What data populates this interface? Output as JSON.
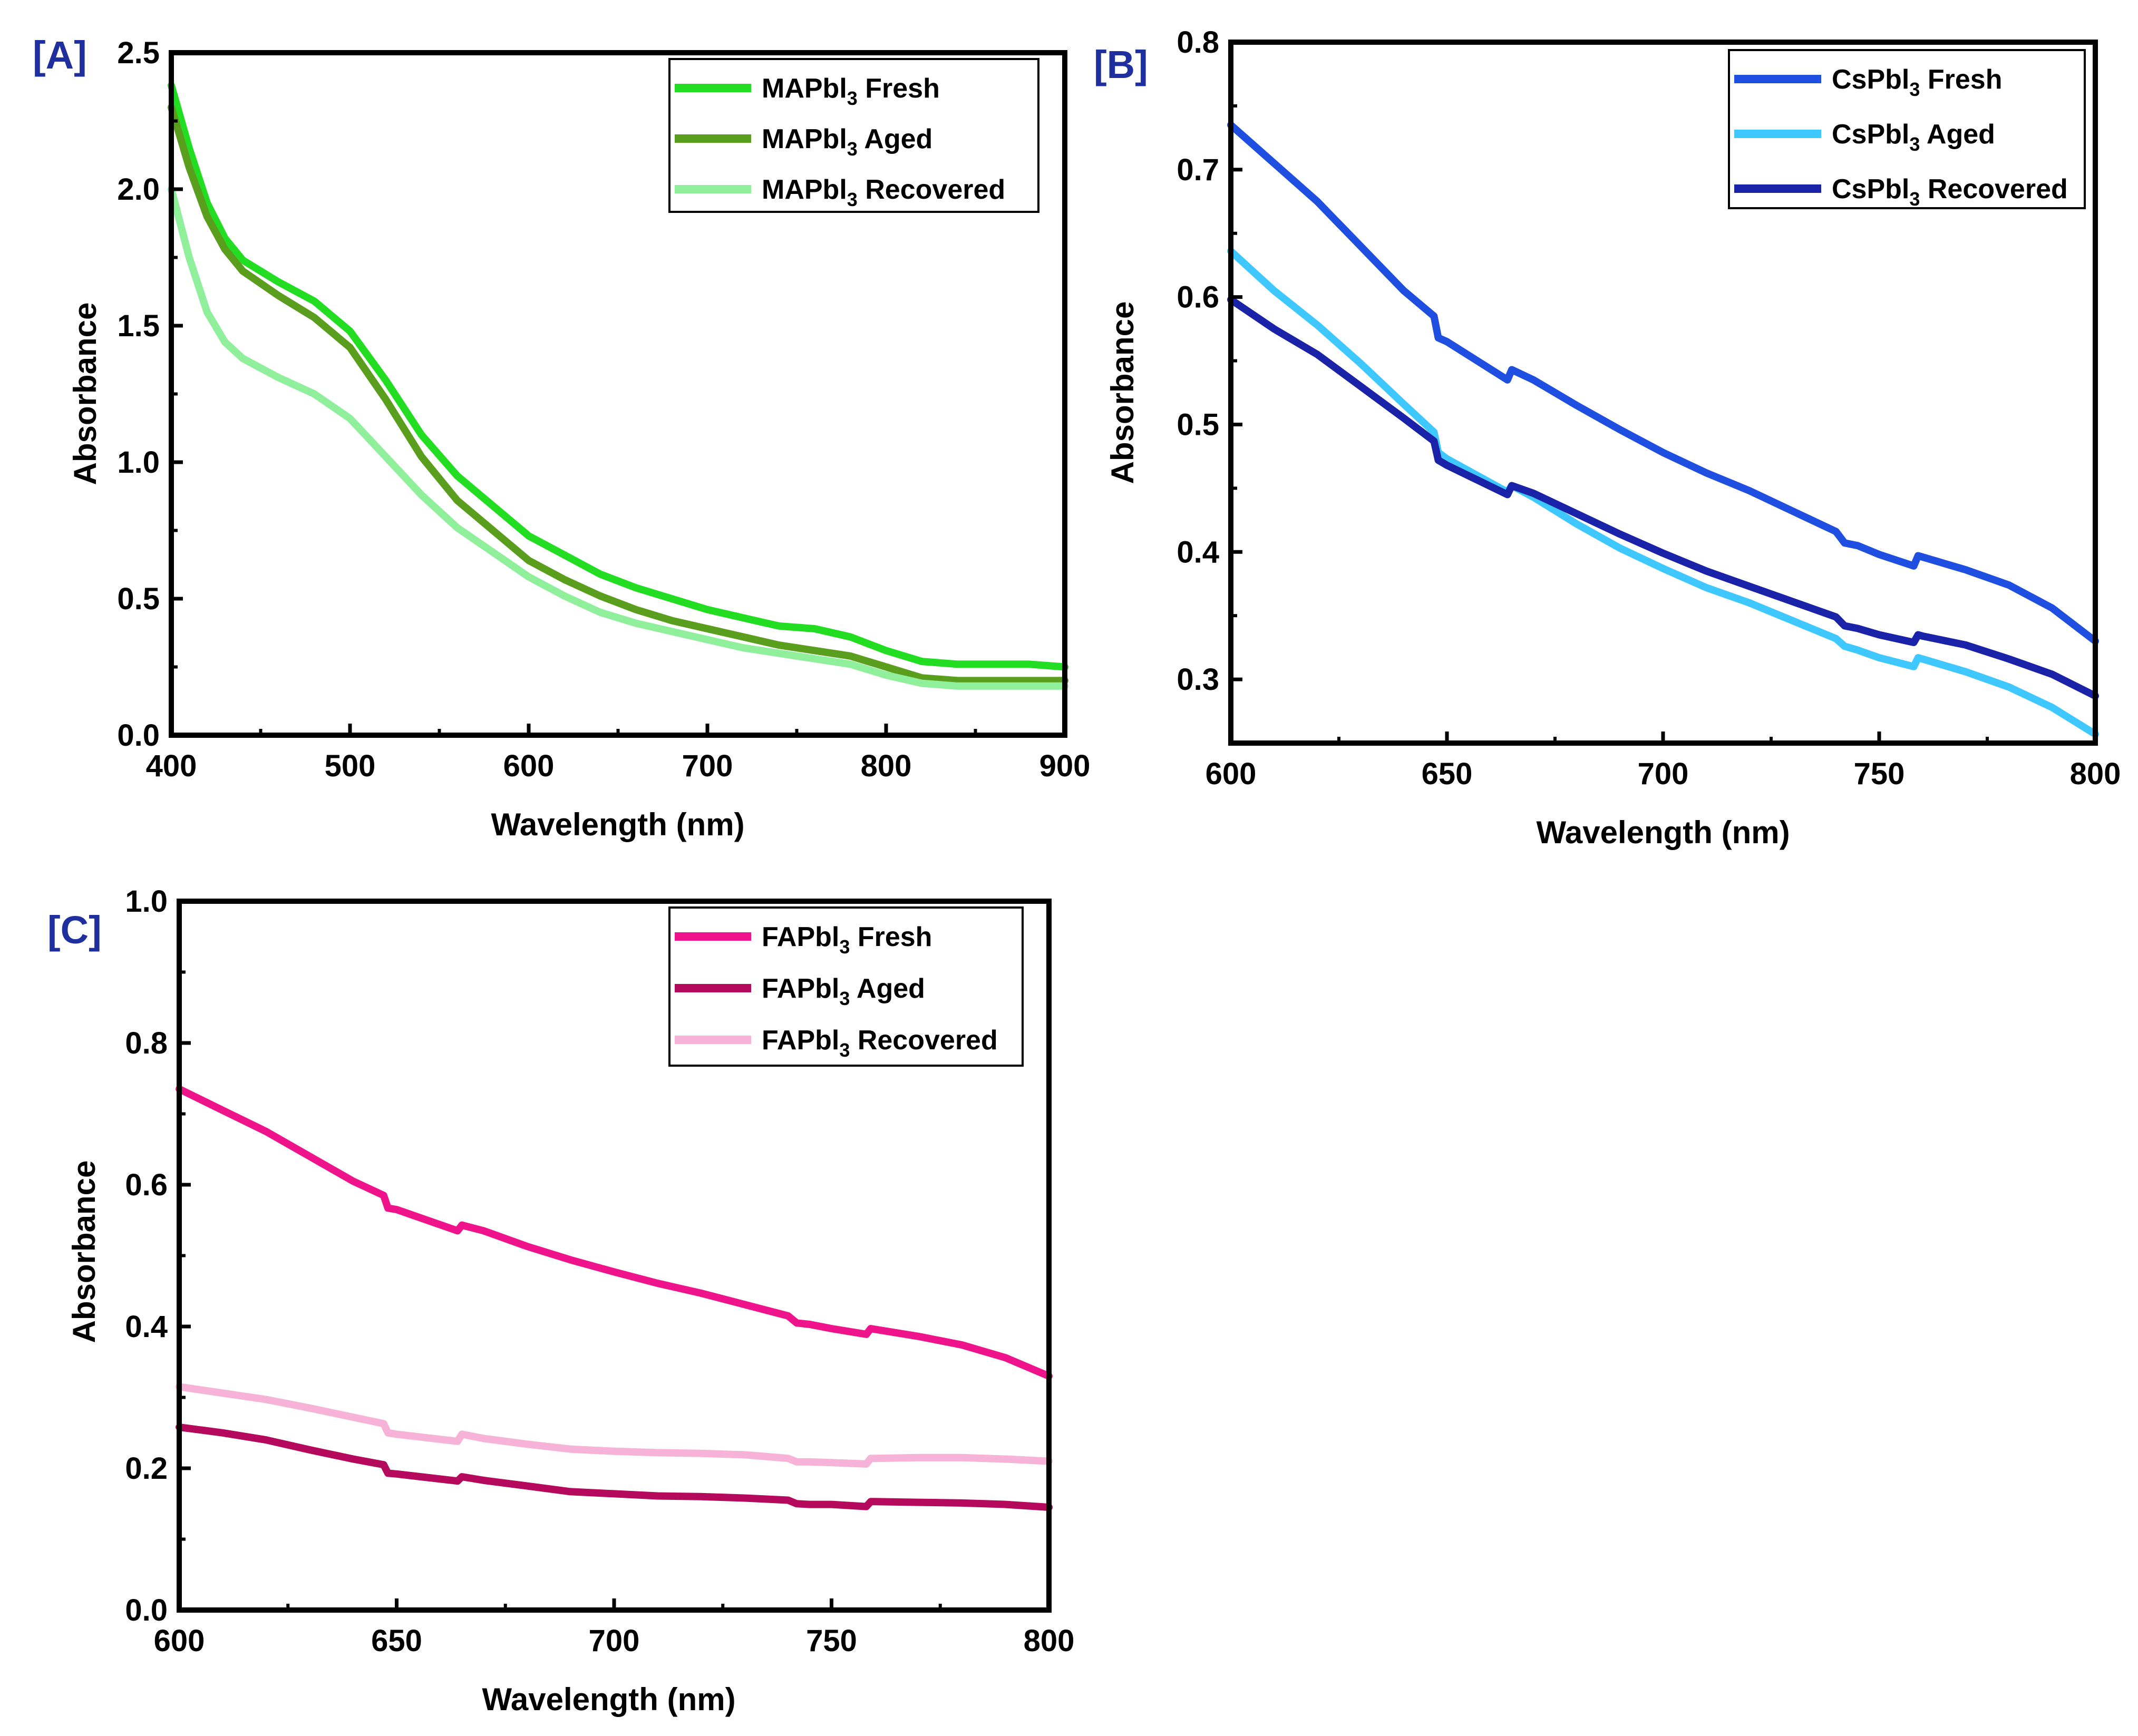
{
  "chart_data": [
    {
      "id": "A",
      "panel_label": "[A]",
      "type": "line",
      "title": "",
      "xlabel": "Wavelength (nm)",
      "ylabel": "Absorbance",
      "xlim": [
        400,
        900
      ],
      "ylim": [
        0.0,
        2.5
      ],
      "xticks": [
        400,
        500,
        600,
        700,
        800,
        900
      ],
      "yticks": [
        0.0,
        0.5,
        1.0,
        1.5,
        2.0,
        2.5
      ],
      "xtick_labels": [
        "400",
        "500",
        "600",
        "700",
        "800",
        "900"
      ],
      "ytick_labels": [
        "0.0",
        "0.5",
        "1.0",
        "1.5",
        "2.0",
        "2.5"
      ],
      "legend_position": "top-right",
      "series": [
        {
          "name": "MAPbI3 Fresh",
          "legend_main": "MAPbl",
          "legend_sub": "3",
          "legend_suffix": " Fresh",
          "color": "#22dd22",
          "x": [
            400,
            410,
            420,
            430,
            440,
            460,
            480,
            500,
            520,
            540,
            560,
            580,
            600,
            620,
            640,
            660,
            680,
            700,
            720,
            740,
            760,
            780,
            800,
            820,
            840,
            860,
            880,
            900
          ],
          "y": [
            2.38,
            2.15,
            1.95,
            1.82,
            1.74,
            1.66,
            1.59,
            1.48,
            1.3,
            1.1,
            0.95,
            0.84,
            0.73,
            0.66,
            0.59,
            0.54,
            0.5,
            0.46,
            0.43,
            0.4,
            0.39,
            0.36,
            0.31,
            0.27,
            0.26,
            0.26,
            0.26,
            0.25
          ]
        },
        {
          "name": "MAPbI3 Aged",
          "legend_main": "MAPbl",
          "legend_sub": "3",
          "legend_suffix": " Aged",
          "color": "#5a9e1e",
          "x": [
            400,
            410,
            420,
            430,
            440,
            460,
            480,
            500,
            520,
            540,
            560,
            580,
            600,
            620,
            640,
            660,
            680,
            700,
            720,
            740,
            760,
            780,
            800,
            820,
            840,
            860,
            880,
            900
          ],
          "y": [
            2.3,
            2.08,
            1.9,
            1.78,
            1.7,
            1.61,
            1.53,
            1.42,
            1.23,
            1.02,
            0.86,
            0.75,
            0.64,
            0.57,
            0.51,
            0.46,
            0.42,
            0.39,
            0.36,
            0.33,
            0.31,
            0.29,
            0.25,
            0.21,
            0.2,
            0.2,
            0.2,
            0.2
          ]
        },
        {
          "name": "MAPbI3 Recovered",
          "legend_main": "MAPbl",
          "legend_sub": "3",
          "legend_suffix": " Recovered",
          "color": "#8fef9a",
          "x": [
            400,
            410,
            420,
            430,
            440,
            460,
            480,
            500,
            520,
            540,
            560,
            580,
            600,
            620,
            640,
            660,
            680,
            700,
            720,
            740,
            760,
            780,
            800,
            820,
            840,
            860,
            880,
            900
          ],
          "y": [
            2.0,
            1.75,
            1.55,
            1.44,
            1.38,
            1.31,
            1.25,
            1.16,
            1.02,
            0.88,
            0.76,
            0.67,
            0.58,
            0.51,
            0.45,
            0.41,
            0.38,
            0.35,
            0.32,
            0.3,
            0.28,
            0.26,
            0.22,
            0.19,
            0.18,
            0.18,
            0.18,
            0.18
          ]
        }
      ]
    },
    {
      "id": "B",
      "panel_label": "[B]",
      "type": "line",
      "title": "",
      "xlabel": "Wavelength (nm)",
      "ylabel": "Absorbance",
      "xlim": [
        600,
        800
      ],
      "ylim": [
        0.25,
        0.8
      ],
      "xticks": [
        600,
        650,
        700,
        750,
        800
      ],
      "yticks": [
        0.3,
        0.4,
        0.5,
        0.6,
        0.7,
        0.8
      ],
      "xtick_labels": [
        "600",
        "650",
        "700",
        "750",
        "800"
      ],
      "ytick_labels": [
        "0.3",
        "0.4",
        "0.5",
        "0.6",
        "0.7",
        "0.8"
      ],
      "legend_position": "top-right",
      "series": [
        {
          "name": "CsPbI3 Fresh",
          "legend_main": "CsPbl",
          "legend_sub": "3",
          "legend_suffix": "  Fresh",
          "color": "#1f4fe0",
          "x": [
            600,
            610,
            620,
            630,
            640,
            647,
            648,
            650,
            664,
            665,
            670,
            680,
            690,
            700,
            710,
            720,
            730,
            740,
            742,
            745,
            750,
            758,
            759,
            760,
            770,
            780,
            790,
            800
          ],
          "y": [
            0.735,
            0.705,
            0.675,
            0.64,
            0.605,
            0.585,
            0.568,
            0.565,
            0.535,
            0.543,
            0.535,
            0.515,
            0.496,
            0.478,
            0.462,
            0.448,
            0.432,
            0.416,
            0.407,
            0.405,
            0.398,
            0.389,
            0.397,
            0.396,
            0.386,
            0.374,
            0.356,
            0.33
          ]
        },
        {
          "name": "CsPbI3 Aged",
          "legend_main": "CsPbl",
          "legend_sub": "3",
          "legend_suffix": " Aged",
          "color": "#3fc8ff",
          "x": [
            600,
            610,
            620,
            630,
            640,
            647,
            648,
            650,
            664,
            665,
            670,
            680,
            690,
            700,
            710,
            720,
            730,
            740,
            742,
            745,
            750,
            758,
            759,
            760,
            770,
            780,
            790,
            800
          ],
          "y": [
            0.636,
            0.605,
            0.578,
            0.548,
            0.516,
            0.494,
            0.478,
            0.473,
            0.447,
            0.452,
            0.443,
            0.422,
            0.403,
            0.387,
            0.372,
            0.36,
            0.346,
            0.332,
            0.326,
            0.323,
            0.317,
            0.31,
            0.317,
            0.316,
            0.306,
            0.294,
            0.278,
            0.257
          ]
        },
        {
          "name": "CsPbI3 Recovered",
          "legend_main": "CsPbl",
          "legend_sub": "3",
          "legend_suffix": " Recovered",
          "color": "#1a22a8",
          "x": [
            600,
            610,
            620,
            630,
            640,
            647,
            648,
            650,
            664,
            665,
            670,
            680,
            690,
            700,
            710,
            720,
            730,
            740,
            742,
            745,
            750,
            758,
            759,
            760,
            770,
            780,
            790,
            800
          ],
          "y": [
            0.598,
            0.575,
            0.555,
            0.53,
            0.505,
            0.487,
            0.472,
            0.468,
            0.445,
            0.452,
            0.446,
            0.43,
            0.414,
            0.399,
            0.385,
            0.373,
            0.361,
            0.349,
            0.342,
            0.34,
            0.335,
            0.329,
            0.335,
            0.334,
            0.327,
            0.316,
            0.304,
            0.287
          ]
        }
      ]
    },
    {
      "id": "C",
      "panel_label": "[C]",
      "type": "line",
      "title": "",
      "xlabel": "Wavelength (nm)",
      "ylabel": "Absorbance",
      "xlim": [
        600,
        800
      ],
      "ylim": [
        0.0,
        1.0
      ],
      "xticks": [
        600,
        650,
        700,
        750,
        800
      ],
      "yticks": [
        0.0,
        0.2,
        0.4,
        0.6,
        0.8,
        1.0
      ],
      "xtick_labels": [
        "600",
        "650",
        "700",
        "750",
        "800"
      ],
      "ytick_labels": [
        "0.0",
        "0.2",
        "0.4",
        "0.6",
        "0.8",
        "1.0"
      ],
      "legend_position": "top-right",
      "series": [
        {
          "name": "FAPbI3 Fresh",
          "legend_main": "FAPbl",
          "legend_sub": "3",
          "legend_suffix": " Fresh",
          "color": "#f0148c",
          "x": [
            600,
            610,
            620,
            630,
            640,
            647,
            648,
            650,
            664,
            665,
            670,
            680,
            690,
            700,
            710,
            720,
            730,
            740,
            742,
            745,
            750,
            758,
            759,
            760,
            770,
            780,
            790,
            800
          ],
          "y": [
            0.735,
            0.705,
            0.675,
            0.64,
            0.605,
            0.585,
            0.567,
            0.565,
            0.535,
            0.543,
            0.535,
            0.513,
            0.494,
            0.477,
            0.461,
            0.447,
            0.431,
            0.415,
            0.405,
            0.403,
            0.397,
            0.389,
            0.397,
            0.396,
            0.386,
            0.374,
            0.356,
            0.33
          ]
        },
        {
          "name": "FAPbI3 Aged",
          "legend_main": "FAPbl",
          "legend_sub": "3",
          "legend_suffix": " Aged",
          "color": "#b5095e",
          "x": [
            600,
            610,
            620,
            630,
            640,
            647,
            648,
            650,
            664,
            665,
            670,
            680,
            690,
            700,
            710,
            720,
            730,
            740,
            742,
            745,
            750,
            758,
            759,
            760,
            770,
            780,
            790,
            800
          ],
          "y": [
            0.258,
            0.25,
            0.24,
            0.226,
            0.213,
            0.205,
            0.193,
            0.192,
            0.182,
            0.188,
            0.183,
            0.175,
            0.167,
            0.164,
            0.161,
            0.16,
            0.158,
            0.155,
            0.15,
            0.149,
            0.149,
            0.146,
            0.153,
            0.153,
            0.152,
            0.151,
            0.149,
            0.145
          ]
        },
        {
          "name": "FAPbI3 Recovered",
          "legend_main": "FAPbl",
          "legend_sub": "3",
          "legend_suffix": " Recovered",
          "color": "#f7b2d8",
          "x": [
            600,
            610,
            620,
            630,
            640,
            647,
            648,
            650,
            664,
            665,
            670,
            680,
            690,
            700,
            710,
            720,
            730,
            740,
            742,
            745,
            750,
            758,
            759,
            760,
            770,
            780,
            790,
            800
          ],
          "y": [
            0.315,
            0.306,
            0.297,
            0.285,
            0.272,
            0.263,
            0.25,
            0.248,
            0.238,
            0.248,
            0.242,
            0.234,
            0.227,
            0.224,
            0.222,
            0.221,
            0.219,
            0.214,
            0.209,
            0.209,
            0.208,
            0.206,
            0.214,
            0.214,
            0.215,
            0.215,
            0.213,
            0.21
          ]
        }
      ]
    }
  ]
}
